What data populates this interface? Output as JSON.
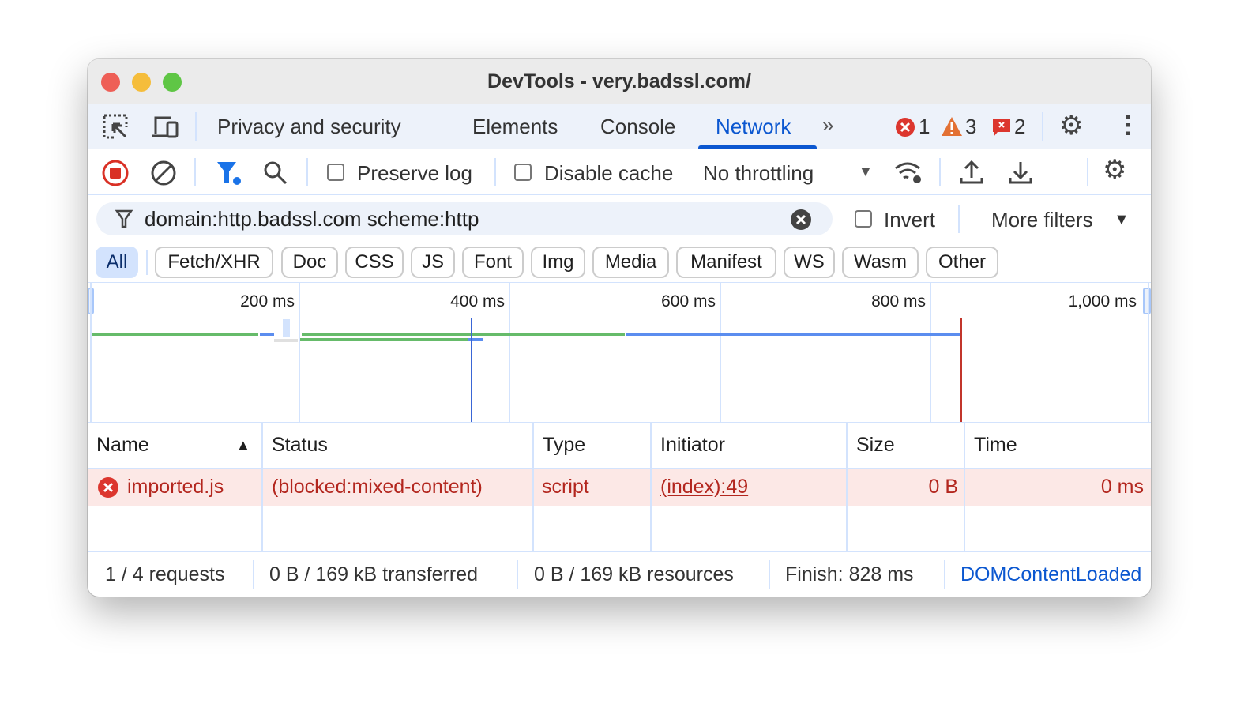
{
  "window": {
    "title": "DevTools - very.badssl.com/"
  },
  "tabs": {
    "items": [
      "Privacy and security",
      "Elements",
      "Console",
      "Network"
    ],
    "active": "Network",
    "errors": "1",
    "warnings": "3",
    "issues": "2"
  },
  "toolbar": {
    "preserve_log": "Preserve log",
    "disable_cache": "Disable cache",
    "throttling": "No throttling"
  },
  "filter": {
    "value": "domain:http.badssl.com scheme:http",
    "invert": "Invert",
    "more_filters": "More filters"
  },
  "chips": [
    "All",
    "Fetch/XHR",
    "Doc",
    "CSS",
    "JS",
    "Font",
    "Img",
    "Media",
    "Manifest",
    "WS",
    "Wasm",
    "Other"
  ],
  "overview": {
    "ticks": [
      "200 ms",
      "400 ms",
      "600 ms",
      "800 ms",
      "1,000 ms"
    ],
    "dom_content_loaded_ms": 364,
    "load_ms": 828,
    "colors": {
      "waiting": "#66bb6a",
      "download": "#5b8def",
      "dcl": "#3a66d6",
      "load": "#c2352b"
    }
  },
  "table": {
    "headers": [
      "Name",
      "Status",
      "Type",
      "Initiator",
      "Size",
      "Time"
    ],
    "sort": "Name ascending",
    "rows": [
      {
        "name": "imported.js",
        "status": "(blocked:mixed-content)",
        "type": "script",
        "initiator": "(index):49",
        "size": "0 B",
        "time": "0 ms",
        "error": true
      }
    ]
  },
  "footer": {
    "requests": "1 / 4 requests",
    "transferred": "0 B / 169 kB transferred",
    "resources": "0 B / 169 kB resources",
    "finish": "Finish: 828 ms",
    "dcl": "DOMContentLoaded"
  }
}
